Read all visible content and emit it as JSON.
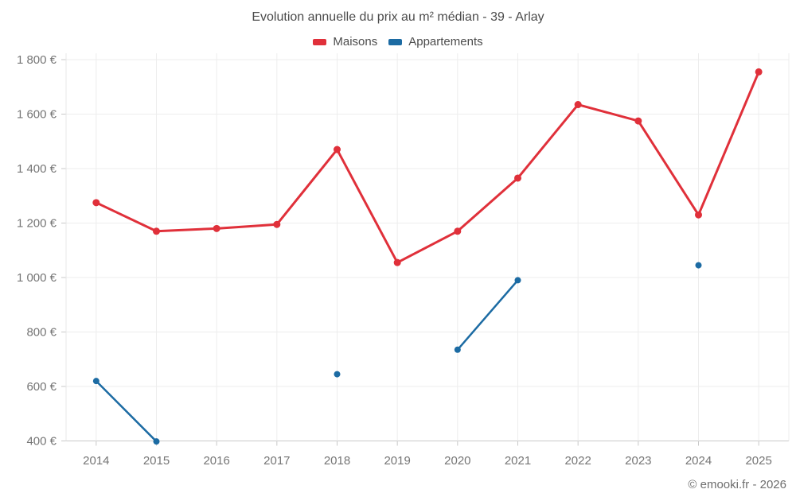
{
  "header": {
    "title": "Evolution annuelle du prix au m² médian - 39 - Arlay"
  },
  "legend": {
    "items": [
      {
        "label": "Maisons",
        "color": "#e0303a"
      },
      {
        "label": "Appartements",
        "color": "#1c6ba3"
      }
    ]
  },
  "footer": {
    "credit": "© emooki.fr - 2026"
  },
  "chart_data": {
    "type": "line",
    "title": "Evolution annuelle du prix au m² médian - 39 - Arlay",
    "x": [
      "2014",
      "2015",
      "2016",
      "2017",
      "2018",
      "2019",
      "2020",
      "2021",
      "2022",
      "2023",
      "2024",
      "2025"
    ],
    "series": [
      {
        "name": "Maisons",
        "color": "#e0303a",
        "line_width": 3,
        "marker_radius": 4.5,
        "values": [
          1275,
          1170,
          1180,
          1195,
          1470,
          1055,
          1170,
          1365,
          1635,
          1575,
          1230,
          1755
        ]
      },
      {
        "name": "Appartements",
        "color": "#1c6ba3",
        "line_width": 2.5,
        "marker_radius": 4,
        "values": [
          620,
          398,
          null,
          null,
          645,
          null,
          735,
          990,
          null,
          null,
          1045,
          null
        ]
      }
    ],
    "xlabel": "",
    "ylabel": "",
    "ylim": [
      400,
      1800
    ],
    "ytick_step": 200,
    "ytick_suffix": " €",
    "grid": true,
    "legend_position": "top"
  }
}
